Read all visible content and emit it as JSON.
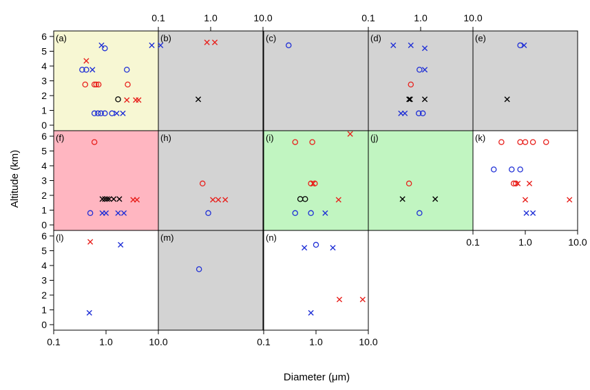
{
  "chart_data": {
    "type": "scatter",
    "title": "",
    "xlabel": "Diameter (μm)",
    "ylabel": "Altitude (km)",
    "x_scale": "log",
    "xlim": [
      0.1,
      10.0
    ],
    "ylim": [
      0,
      6
    ],
    "x_ticks": [
      "0.1",
      "1.0",
      "10.0"
    ],
    "y_ticks": [
      "0",
      "1",
      "2",
      "3",
      "4",
      "5",
      "6"
    ],
    "marker_colors": {
      "red": "#e8201c",
      "blue": "#1f2fd6",
      "black": "#000000"
    },
    "panels": [
      {
        "label": "(a)",
        "background": "#f7f7d3",
        "points": [
          {
            "x": 0.82,
            "y": 5.4,
            "marker": "x",
            "color": "blue"
          },
          {
            "x": 0.95,
            "y": 5.2,
            "marker": "o",
            "color": "blue"
          },
          {
            "x": 7.5,
            "y": 5.4,
            "marker": "x",
            "color": "blue"
          },
          {
            "x": 11,
            "y": 5.4,
            "marker": "x",
            "color": "blue"
          },
          {
            "x": 0.42,
            "y": 4.35,
            "marker": "x",
            "color": "red"
          },
          {
            "x": 0.35,
            "y": 3.75,
            "marker": "o",
            "color": "blue"
          },
          {
            "x": 0.42,
            "y": 3.75,
            "marker": "o",
            "color": "blue"
          },
          {
            "x": 0.55,
            "y": 3.75,
            "marker": "x",
            "color": "blue"
          },
          {
            "x": 2.5,
            "y": 3.75,
            "marker": "o",
            "color": "blue"
          },
          {
            "x": 0.4,
            "y": 2.75,
            "marker": "o",
            "color": "red"
          },
          {
            "x": 0.6,
            "y": 2.75,
            "marker": "o",
            "color": "red"
          },
          {
            "x": 0.65,
            "y": 2.75,
            "marker": "o",
            "color": "red"
          },
          {
            "x": 0.72,
            "y": 2.75,
            "marker": "o",
            "color": "red"
          },
          {
            "x": 2.6,
            "y": 2.75,
            "marker": "o",
            "color": "red"
          },
          {
            "x": 1.7,
            "y": 1.75,
            "marker": "o",
            "color": "black"
          },
          {
            "x": 2.5,
            "y": 1.7,
            "marker": "x",
            "color": "red"
          },
          {
            "x": 3.7,
            "y": 1.7,
            "marker": "x",
            "color": "red"
          },
          {
            "x": 4.2,
            "y": 1.7,
            "marker": "x",
            "color": "red"
          },
          {
            "x": 0.6,
            "y": 0.8,
            "marker": "o",
            "color": "blue"
          },
          {
            "x": 0.7,
            "y": 0.8,
            "marker": "o",
            "color": "blue"
          },
          {
            "x": 0.8,
            "y": 0.8,
            "marker": "o",
            "color": "blue"
          },
          {
            "x": 0.95,
            "y": 0.8,
            "marker": "o",
            "color": "blue"
          },
          {
            "x": 1.3,
            "y": 0.8,
            "marker": "o",
            "color": "blue"
          },
          {
            "x": 1.6,
            "y": 0.8,
            "marker": "x",
            "color": "blue"
          },
          {
            "x": 2.1,
            "y": 0.8,
            "marker": "x",
            "color": "blue"
          }
        ]
      },
      {
        "label": "(b)",
        "background": "#d3d3d3",
        "points": [
          {
            "x": 0.85,
            "y": 5.6,
            "marker": "x",
            "color": "red"
          },
          {
            "x": 1.2,
            "y": 5.6,
            "marker": "x",
            "color": "red"
          },
          {
            "x": 0.58,
            "y": 1.75,
            "marker": "x",
            "color": "black"
          }
        ]
      },
      {
        "label": "(c)",
        "background": "#d3d3d3",
        "points": [
          {
            "x": 0.3,
            "y": 5.4,
            "marker": "o",
            "color": "blue"
          }
        ]
      },
      {
        "label": "(d)",
        "background": "#d3d3d3",
        "points": [
          {
            "x": 0.3,
            "y": 5.4,
            "marker": "x",
            "color": "blue"
          },
          {
            "x": 0.65,
            "y": 5.4,
            "marker": "x",
            "color": "blue"
          },
          {
            "x": 1.2,
            "y": 5.2,
            "marker": "x",
            "color": "blue"
          },
          {
            "x": 0.95,
            "y": 3.75,
            "marker": "o",
            "color": "blue"
          },
          {
            "x": 1.2,
            "y": 3.75,
            "marker": "x",
            "color": "blue"
          },
          {
            "x": 0.65,
            "y": 2.75,
            "marker": "o",
            "color": "red"
          },
          {
            "x": 0.6,
            "y": 1.75,
            "marker": "x",
            "color": "black"
          },
          {
            "x": 0.63,
            "y": 1.75,
            "marker": "x",
            "color": "black"
          },
          {
            "x": 1.2,
            "y": 1.75,
            "marker": "x",
            "color": "black"
          },
          {
            "x": 0.42,
            "y": 0.8,
            "marker": "x",
            "color": "blue"
          },
          {
            "x": 0.5,
            "y": 0.8,
            "marker": "x",
            "color": "blue"
          },
          {
            "x": 0.92,
            "y": 0.8,
            "marker": "o",
            "color": "blue"
          },
          {
            "x": 1.1,
            "y": 0.8,
            "marker": "o",
            "color": "blue"
          }
        ]
      },
      {
        "label": "(e)",
        "background": "#d3d3d3",
        "points": [
          {
            "x": 0.8,
            "y": 5.4,
            "marker": "o",
            "color": "blue"
          },
          {
            "x": 0.95,
            "y": 5.4,
            "marker": "x",
            "color": "blue"
          },
          {
            "x": 0.45,
            "y": 1.75,
            "marker": "x",
            "color": "black"
          }
        ]
      },
      {
        "label": "(f)",
        "background": "#ffb6c1",
        "points": [
          {
            "x": 0.6,
            "y": 5.6,
            "marker": "o",
            "color": "red"
          },
          {
            "x": 0.85,
            "y": 1.75,
            "marker": "x",
            "color": "black"
          },
          {
            "x": 0.95,
            "y": 1.75,
            "marker": "x",
            "color": "black"
          },
          {
            "x": 1.05,
            "y": 1.75,
            "marker": "x",
            "color": "black"
          },
          {
            "x": 1.15,
            "y": 1.75,
            "marker": "x",
            "color": "black"
          },
          {
            "x": 1.4,
            "y": 1.75,
            "marker": "x",
            "color": "black"
          },
          {
            "x": 1.8,
            "y": 1.75,
            "marker": "x",
            "color": "black"
          },
          {
            "x": 3.3,
            "y": 1.7,
            "marker": "x",
            "color": "red"
          },
          {
            "x": 3.9,
            "y": 1.7,
            "marker": "x",
            "color": "red"
          },
          {
            "x": 0.5,
            "y": 0.8,
            "marker": "o",
            "color": "blue"
          },
          {
            "x": 0.85,
            "y": 0.8,
            "marker": "x",
            "color": "blue"
          },
          {
            "x": 1.0,
            "y": 0.8,
            "marker": "x",
            "color": "blue"
          },
          {
            "x": 1.7,
            "y": 0.8,
            "marker": "x",
            "color": "blue"
          },
          {
            "x": 2.2,
            "y": 0.8,
            "marker": "x",
            "color": "blue"
          }
        ]
      },
      {
        "label": "(h)",
        "background": "#d3d3d3",
        "points": [
          {
            "x": 0.7,
            "y": 2.8,
            "marker": "o",
            "color": "red"
          },
          {
            "x": 1.1,
            "y": 1.7,
            "marker": "x",
            "color": "red"
          },
          {
            "x": 1.4,
            "y": 1.7,
            "marker": "x",
            "color": "red"
          },
          {
            "x": 1.9,
            "y": 1.7,
            "marker": "x",
            "color": "red"
          },
          {
            "x": 0.9,
            "y": 0.8,
            "marker": "o",
            "color": "blue"
          }
        ]
      },
      {
        "label": "(i)",
        "background": "#c1f5c1",
        "points": [
          {
            "x": 0.4,
            "y": 5.6,
            "marker": "o",
            "color": "red"
          },
          {
            "x": 0.85,
            "y": 5.6,
            "marker": "o",
            "color": "red"
          },
          {
            "x": 4.5,
            "y": 6.15,
            "marker": "x",
            "color": "red"
          },
          {
            "x": 0.8,
            "y": 2.8,
            "marker": "o",
            "color": "red"
          },
          {
            "x": 0.95,
            "y": 2.8,
            "marker": "o",
            "color": "red"
          },
          {
            "x": 0.88,
            "y": 2.8,
            "marker": "x",
            "color": "red"
          },
          {
            "x": 0.5,
            "y": 1.75,
            "marker": "o",
            "color": "black"
          },
          {
            "x": 0.62,
            "y": 1.75,
            "marker": "o",
            "color": "black"
          },
          {
            "x": 2.7,
            "y": 1.7,
            "marker": "x",
            "color": "red"
          },
          {
            "x": 0.4,
            "y": 0.8,
            "marker": "o",
            "color": "blue"
          },
          {
            "x": 0.8,
            "y": 0.8,
            "marker": "o",
            "color": "blue"
          },
          {
            "x": 1.5,
            "y": 0.8,
            "marker": "x",
            "color": "blue"
          }
        ]
      },
      {
        "label": "(j)",
        "background": "#c1f5c1",
        "points": [
          {
            "x": 0.6,
            "y": 2.8,
            "marker": "o",
            "color": "red"
          },
          {
            "x": 0.45,
            "y": 1.75,
            "marker": "x",
            "color": "black"
          },
          {
            "x": 1.9,
            "y": 1.75,
            "marker": "x",
            "color": "black"
          },
          {
            "x": 0.95,
            "y": 0.8,
            "marker": "o",
            "color": "blue"
          }
        ]
      },
      {
        "label": "(k)",
        "background": "#ffffff",
        "points": [
          {
            "x": 0.35,
            "y": 5.6,
            "marker": "o",
            "color": "red"
          },
          {
            "x": 0.8,
            "y": 5.6,
            "marker": "o",
            "color": "red"
          },
          {
            "x": 1.0,
            "y": 5.6,
            "marker": "o",
            "color": "red"
          },
          {
            "x": 1.4,
            "y": 5.6,
            "marker": "o",
            "color": "red"
          },
          {
            "x": 2.5,
            "y": 5.6,
            "marker": "o",
            "color": "red"
          },
          {
            "x": 0.25,
            "y": 3.75,
            "marker": "o",
            "color": "blue"
          },
          {
            "x": 0.55,
            "y": 3.75,
            "marker": "o",
            "color": "blue"
          },
          {
            "x": 0.8,
            "y": 3.75,
            "marker": "o",
            "color": "blue"
          },
          {
            "x": 0.6,
            "y": 2.8,
            "marker": "o",
            "color": "red"
          },
          {
            "x": 0.66,
            "y": 2.8,
            "marker": "o",
            "color": "red"
          },
          {
            "x": 0.72,
            "y": 2.8,
            "marker": "x",
            "color": "red"
          },
          {
            "x": 1.2,
            "y": 2.8,
            "marker": "x",
            "color": "red"
          },
          {
            "x": 1.0,
            "y": 1.7,
            "marker": "x",
            "color": "red"
          },
          {
            "x": 7.0,
            "y": 1.7,
            "marker": "x",
            "color": "red"
          },
          {
            "x": 1.05,
            "y": 0.8,
            "marker": "x",
            "color": "blue"
          },
          {
            "x": 1.4,
            "y": 0.8,
            "marker": "x",
            "color": "blue"
          }
        ]
      },
      {
        "label": "(l)",
        "background": "#ffffff",
        "points": [
          {
            "x": 0.5,
            "y": 5.6,
            "marker": "x",
            "color": "red"
          },
          {
            "x": 1.9,
            "y": 5.4,
            "marker": "x",
            "color": "blue"
          },
          {
            "x": 0.48,
            "y": 0.8,
            "marker": "x",
            "color": "blue"
          }
        ]
      },
      {
        "label": "(m)",
        "background": "#d3d3d3",
        "points": [
          {
            "x": 0.6,
            "y": 3.75,
            "marker": "o",
            "color": "blue"
          }
        ]
      },
      {
        "label": "(n)",
        "background": "#ffffff",
        "points": [
          {
            "x": 0.6,
            "y": 5.2,
            "marker": "x",
            "color": "blue"
          },
          {
            "x": 1.0,
            "y": 5.4,
            "marker": "o",
            "color": "blue"
          },
          {
            "x": 2.1,
            "y": 5.2,
            "marker": "x",
            "color": "blue"
          },
          {
            "x": 2.8,
            "y": 1.7,
            "marker": "x",
            "color": "red"
          },
          {
            "x": 7.8,
            "y": 1.7,
            "marker": "x",
            "color": "red"
          },
          {
            "x": 0.8,
            "y": 0.8,
            "marker": "x",
            "color": "blue"
          }
        ]
      }
    ]
  }
}
